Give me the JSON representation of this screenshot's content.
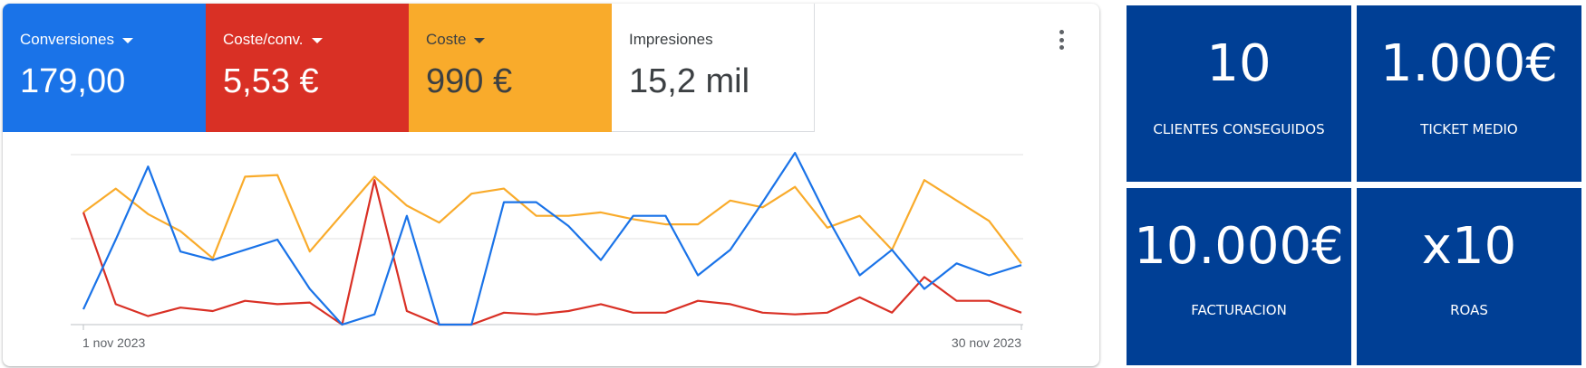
{
  "metrics": [
    {
      "label": "Conversiones",
      "value": "179,00",
      "bg": "#1a73e8",
      "fg": "#ffffff",
      "dropdown": true
    },
    {
      "label": "Coste/conv.",
      "value": "5,53 €",
      "bg": "#d93025",
      "fg": "#ffffff",
      "dropdown": true
    },
    {
      "label": "Coste",
      "value": "990 €",
      "bg": "#f9ab2b",
      "fg": "#3c4043",
      "dropdown": true
    },
    {
      "label": "Impresiones",
      "value": "15,2 mil",
      "bg": "#ffffff",
      "fg": "#3c4043",
      "dropdown": false
    }
  ],
  "menu_icon": "more-vert-icon",
  "chart_data": {
    "type": "line",
    "x_labels": {
      "start": "1 nov 2023",
      "end": "30 nov 2023"
    },
    "grid": true,
    "axis_values_shown": false,
    "series": [
      {
        "color": "#1a73e8",
        "values": [
          9,
          50,
          93,
          43,
          38,
          44,
          50,
          21,
          0,
          6,
          64,
          0,
          0,
          72,
          72,
          58,
          38,
          64,
          64,
          29,
          44,
          72,
          101,
          63,
          29,
          44,
          21,
          36,
          29,
          35
        ]
      },
      {
        "color": "#d93025",
        "values": [
          66,
          12,
          5,
          10,
          8,
          14,
          12,
          13,
          0,
          85,
          8,
          0,
          0,
          7,
          6,
          8,
          12,
          7,
          7,
          14,
          12,
          7,
          6,
          7,
          16,
          7,
          28,
          14,
          14,
          7
        ]
      },
      {
        "color": "#f9ab2b",
        "values": [
          66,
          80,
          65,
          55,
          39,
          87,
          88,
          43,
          65,
          87,
          70,
          60,
          77,
          80,
          64,
          64,
          66,
          62,
          59,
          59,
          73,
          69,
          81,
          57,
          64,
          44,
          85,
          73,
          61,
          36
        ]
      }
    ]
  },
  "kpis": [
    {
      "value": "10",
      "label": "CLIENTES CONSEGUIDOS"
    },
    {
      "value": "1.000€",
      "label": "TICKET MEDIO"
    },
    {
      "value": "10.000€",
      "label": "FACTURACION"
    },
    {
      "value": "x10",
      "label": "ROAS"
    }
  ],
  "kpi_color": "#003f95"
}
